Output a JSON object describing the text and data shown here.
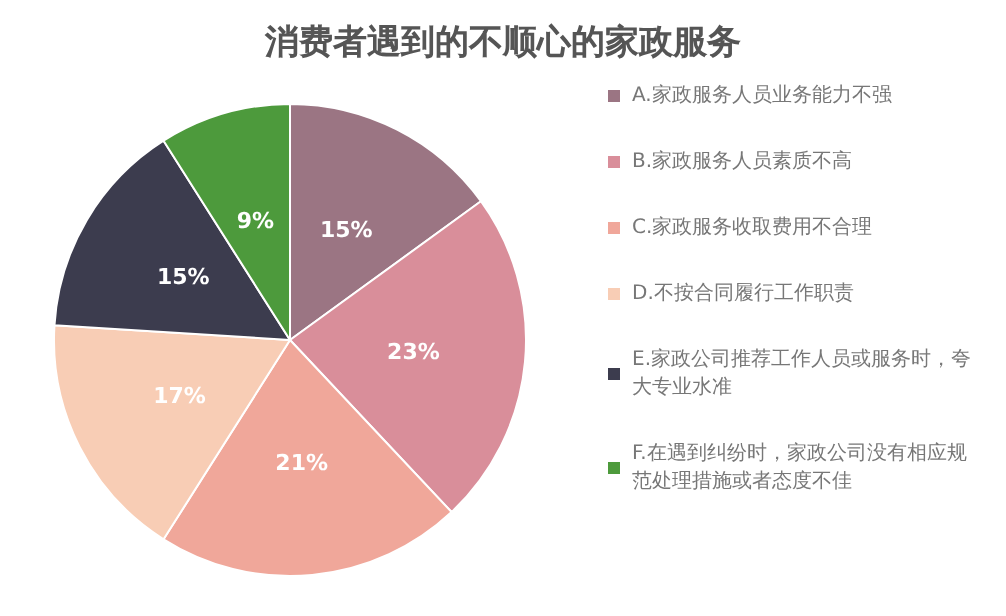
{
  "chart_data": {
    "type": "pie",
    "title": "消费者遇到的不顺心的家政服务",
    "categories": [
      "A.家政服务人员业务能力不强",
      "B.家政服务人员素质不高",
      "C.家政服务收取费用不合理",
      "D.不按合同履行工作职责",
      "E.家政公司推荐工作人员或服务时，夸大专业水准",
      "F.在遇到纠纷时，家政公司没有相应规范处理措施或者态度不佳"
    ],
    "values": [
      15,
      23,
      21,
      17,
      15,
      9
    ],
    "colors": [
      "#9b7583",
      "#d98e9a",
      "#f0a79a",
      "#f8cdb5",
      "#3c3c4e",
      "#4d9a3c"
    ],
    "value_labels": [
      "15%",
      "23%",
      "21%",
      "17%",
      "15%",
      "9%"
    ],
    "legend": "right"
  }
}
